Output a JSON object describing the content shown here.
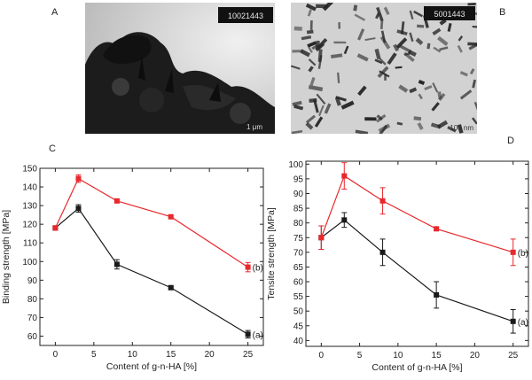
{
  "panels": {
    "a": "A",
    "b": "B",
    "c": "C",
    "d": "D"
  },
  "micrographs": [
    {
      "id": "A",
      "banner": "10021443",
      "scalebar": "1 μm"
    },
    {
      "id": "B",
      "banner": "5001443",
      "scalebar": "100 nm"
    }
  ],
  "colors": {
    "series_a": "#1a1a1a",
    "series_b": "#e8282c",
    "axis": "#222222"
  },
  "chart_data": [
    {
      "type": "line",
      "ylabel": "Binding strength [MPa]",
      "xlabel": "Content of g-n-HA [%]",
      "xlim": [
        -2,
        27
      ],
      "ylim": [
        55,
        150
      ],
      "xticks": [
        0,
        5,
        10,
        15,
        20,
        25
      ],
      "yticks": [
        60,
        70,
        80,
        90,
        100,
        110,
        120,
        130,
        140,
        150
      ],
      "series": [
        {
          "name": "(a)",
          "color": "#1a1a1a",
          "points": [
            {
              "x": 0,
              "y": 118,
              "err": 0
            },
            {
              "x": 3,
              "y": 128.5,
              "err": 2
            },
            {
              "x": 8,
              "y": 98.5,
              "err": 2.5
            },
            {
              "x": 15,
              "y": 86,
              "err": 0.5
            },
            {
              "x": 25,
              "y": 61,
              "err": 2
            }
          ]
        },
        {
          "name": "(b)",
          "color": "#e8282c",
          "points": [
            {
              "x": 0,
              "y": 118,
              "err": 0
            },
            {
              "x": 3,
              "y": 144.5,
              "err": 2
            },
            {
              "x": 8,
              "y": 132.5,
              "err": 0.5
            },
            {
              "x": 15,
              "y": 124,
              "err": 0.5
            },
            {
              "x": 25,
              "y": 97,
              "err": 2.5
            }
          ]
        }
      ]
    },
    {
      "type": "line",
      "ylabel": "Tensite strength [MPa]",
      "xlabel": "Content of g-n-HA [%]",
      "xlim": [
        -2,
        27
      ],
      "ylim": [
        38,
        101
      ],
      "xticks": [
        0,
        5,
        10,
        15,
        20,
        25
      ],
      "yticks": [
        40,
        45,
        50,
        55,
        60,
        65,
        70,
        75,
        80,
        85,
        90,
        95,
        100
      ],
      "series": [
        {
          "name": "(a)",
          "color": "#1a1a1a",
          "points": [
            {
              "x": 0,
              "y": 75,
              "err": 4
            },
            {
              "x": 3,
              "y": 81,
              "err": 2.5
            },
            {
              "x": 8,
              "y": 70,
              "err": 4.5
            },
            {
              "x": 15,
              "y": 55.5,
              "err": 4.5
            },
            {
              "x": 25,
              "y": 46.5,
              "err": 4
            }
          ]
        },
        {
          "name": "(b)",
          "color": "#e8282c",
          "points": [
            {
              "x": 0,
              "y": 75,
              "err": 4
            },
            {
              "x": 3,
              "y": 96,
              "err": 4.5
            },
            {
              "x": 8,
              "y": 87.5,
              "err": 4.5
            },
            {
              "x": 15,
              "y": 78,
              "err": 0.5
            },
            {
              "x": 25,
              "y": 70,
              "err": 4.5
            }
          ]
        }
      ]
    }
  ]
}
